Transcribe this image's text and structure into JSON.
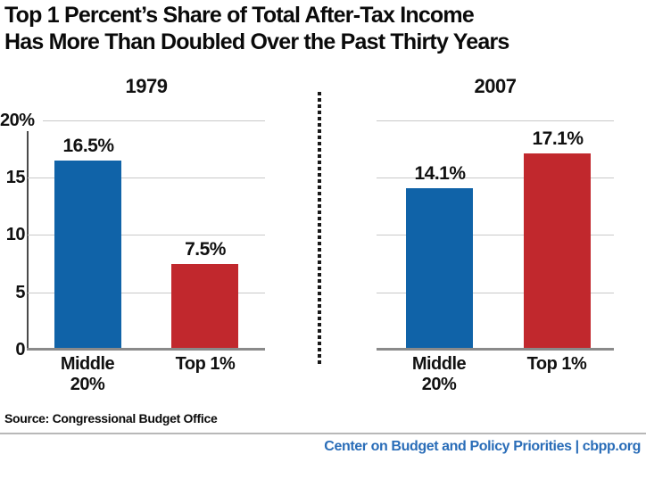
{
  "title": "Top 1 Percent’s Share of Total After-Tax Income\nHas More Than Doubled Over the Past Thirty Years",
  "source": "Source: Congressional Budget Office",
  "footer": "Center on Budget and Policy Priorities | cbpp.org",
  "colors": {
    "bar_blue": "#1063a8",
    "bar_red": "#c1282d",
    "footer_blue": "#2a6db8",
    "gridline": "#c9c9c9",
    "x_axis": "#8a8a8a",
    "y_axis": "#4a4a4a"
  },
  "y_axis": {
    "tick_labels": [
      "20%",
      "15",
      "10",
      "5",
      "0"
    ],
    "min": 0,
    "max": 20
  },
  "chart_data": [
    {
      "type": "bar",
      "title": "1979",
      "categories": [
        "Middle 20%",
        "Top 1%"
      ],
      "category_display": [
        "Middle\n20%",
        "Top 1%"
      ],
      "values": [
        16.5,
        7.5
      ],
      "value_labels": [
        "16.5%",
        "7.5%"
      ],
      "colors": [
        "#1063a8",
        "#c1282d"
      ],
      "ylabel": "",
      "ylim": [
        0,
        20
      ],
      "grid": true
    },
    {
      "type": "bar",
      "title": "2007",
      "categories": [
        "Middle 20%",
        "Top 1%"
      ],
      "category_display": [
        "Middle\n20%",
        "Top 1%"
      ],
      "values": [
        14.1,
        17.1
      ],
      "value_labels": [
        "14.1%",
        "17.1%"
      ],
      "colors": [
        "#1063a8",
        "#c1282d"
      ],
      "ylabel": "",
      "ylim": [
        0,
        20
      ],
      "grid": true
    }
  ]
}
